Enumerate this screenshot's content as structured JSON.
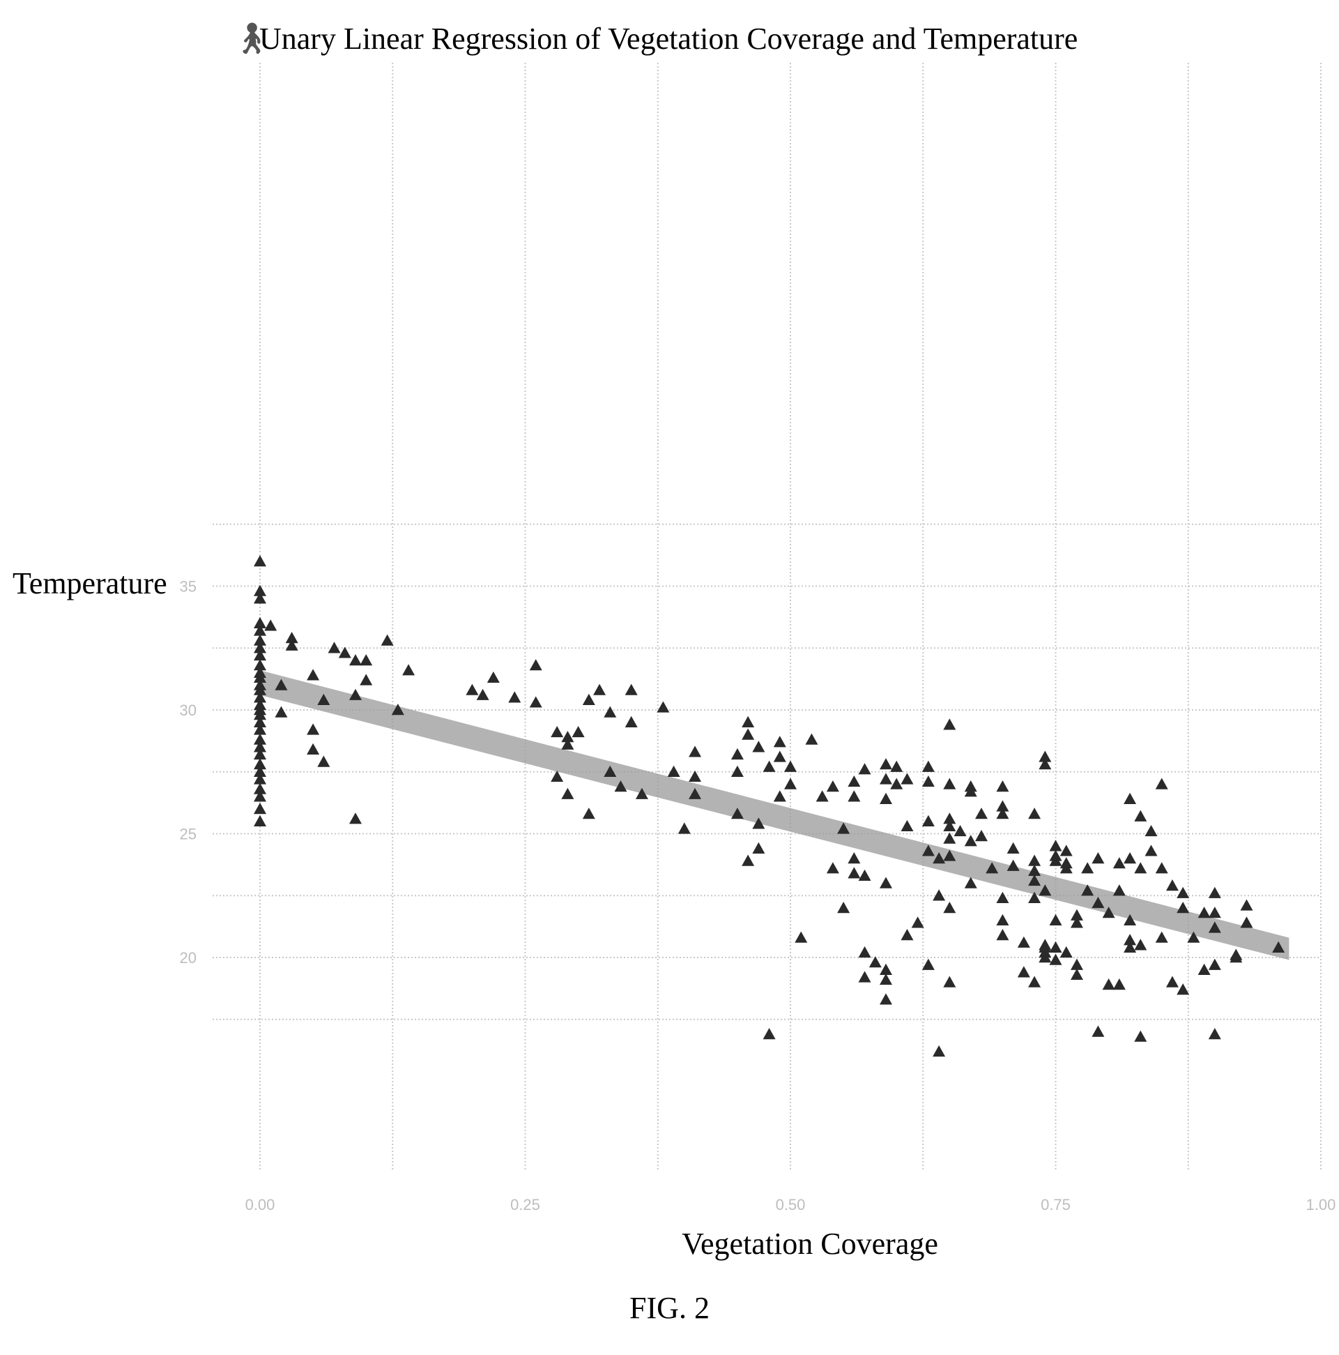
{
  "caption": "FIG. 2",
  "chart_data": {
    "type": "scatter",
    "title": "Unary Linear Regression of Vegetation Coverage and Temperature",
    "xlabel": "Vegetation Coverage",
    "ylabel": "Temperature",
    "xlim": [
      0.0,
      1.0
    ],
    "ylim": [
      15.0,
      38.0
    ],
    "xticks": [
      "0.00",
      "0.25",
      "0.50",
      "0.75",
      "1.00"
    ],
    "yticks": [
      {
        "value": 20,
        "label": "20"
      },
      {
        "value": 25,
        "label": "25"
      },
      {
        "value": 30,
        "label": "30"
      },
      {
        "value": 35,
        "label": "35"
      }
    ],
    "grid": true,
    "marker": "triangle",
    "colors": {
      "points": "#2a2a2a",
      "band": "#9a9a9a",
      "grid": "#c8c8c8"
    },
    "regression": {
      "x": [
        0.0,
        0.97
      ],
      "upper": [
        31.6,
        20.8
      ],
      "lower": [
        30.6,
        19.9
      ]
    },
    "points": [
      [
        0.0,
        36.0
      ],
      [
        0.0,
        34.8
      ],
      [
        0.0,
        34.5
      ],
      [
        0.0,
        33.5
      ],
      [
        0.0,
        33.2
      ],
      [
        0.0,
        32.8
      ],
      [
        0.0,
        32.5
      ],
      [
        0.0,
        32.2
      ],
      [
        0.0,
        31.8
      ],
      [
        0.0,
        31.5
      ],
      [
        0.0,
        31.3
      ],
      [
        0.0,
        31.0
      ],
      [
        0.0,
        30.8
      ],
      [
        0.0,
        30.5
      ],
      [
        0.0,
        30.2
      ],
      [
        0.0,
        30.0
      ],
      [
        0.0,
        29.8
      ],
      [
        0.0,
        29.5
      ],
      [
        0.0,
        29.2
      ],
      [
        0.0,
        28.8
      ],
      [
        0.0,
        28.5
      ],
      [
        0.0,
        28.2
      ],
      [
        0.0,
        27.8
      ],
      [
        0.0,
        27.5
      ],
      [
        0.0,
        27.2
      ],
      [
        0.0,
        26.8
      ],
      [
        0.0,
        26.5
      ],
      [
        0.0,
        26.0
      ],
      [
        0.0,
        25.5
      ],
      [
        0.01,
        33.4
      ],
      [
        0.02,
        29.9
      ],
      [
        0.02,
        31.0
      ],
      [
        0.03,
        32.9
      ],
      [
        0.03,
        32.6
      ],
      [
        0.05,
        31.4
      ],
      [
        0.05,
        29.2
      ],
      [
        0.05,
        28.4
      ],
      [
        0.06,
        30.4
      ],
      [
        0.06,
        27.9
      ],
      [
        0.07,
        32.5
      ],
      [
        0.08,
        32.3
      ],
      [
        0.09,
        32.0
      ],
      [
        0.09,
        30.6
      ],
      [
        0.09,
        25.6
      ],
      [
        0.1,
        31.2
      ],
      [
        0.1,
        32.0
      ],
      [
        0.12,
        32.8
      ],
      [
        0.13,
        30.0
      ],
      [
        0.14,
        31.6
      ],
      [
        0.2,
        30.8
      ],
      [
        0.21,
        30.6
      ],
      [
        0.22,
        31.3
      ],
      [
        0.24,
        30.5
      ],
      [
        0.26,
        31.8
      ],
      [
        0.26,
        30.3
      ],
      [
        0.28,
        29.1
      ],
      [
        0.28,
        27.3
      ],
      [
        0.29,
        28.9
      ],
      [
        0.29,
        28.6
      ],
      [
        0.29,
        26.6
      ],
      [
        0.3,
        29.1
      ],
      [
        0.31,
        30.4
      ],
      [
        0.31,
        25.8
      ],
      [
        0.32,
        30.8
      ],
      [
        0.33,
        29.9
      ],
      [
        0.33,
        27.5
      ],
      [
        0.34,
        26.9
      ],
      [
        0.35,
        29.5
      ],
      [
        0.35,
        30.8
      ],
      [
        0.36,
        26.6
      ],
      [
        0.38,
        30.1
      ],
      [
        0.39,
        27.5
      ],
      [
        0.41,
        28.3
      ],
      [
        0.41,
        27.3
      ],
      [
        0.41,
        26.6
      ],
      [
        0.4,
        25.2
      ],
      [
        0.45,
        28.2
      ],
      [
        0.45,
        27.5
      ],
      [
        0.45,
        25.8
      ],
      [
        0.46,
        29.5
      ],
      [
        0.46,
        29.0
      ],
      [
        0.46,
        23.9
      ],
      [
        0.47,
        28.5
      ],
      [
        0.47,
        25.4
      ],
      [
        0.47,
        24.4
      ],
      [
        0.48,
        27.7
      ],
      [
        0.48,
        16.9
      ],
      [
        0.49,
        28.7
      ],
      [
        0.49,
        28.1
      ],
      [
        0.49,
        26.5
      ],
      [
        0.5,
        27.7
      ],
      [
        0.5,
        27.0
      ],
      [
        0.51,
        20.8
      ],
      [
        0.52,
        28.8
      ],
      [
        0.53,
        26.5
      ],
      [
        0.54,
        26.9
      ],
      [
        0.54,
        23.6
      ],
      [
        0.55,
        25.2
      ],
      [
        0.55,
        22.0
      ],
      [
        0.56,
        27.1
      ],
      [
        0.56,
        26.5
      ],
      [
        0.56,
        23.4
      ],
      [
        0.56,
        24.0
      ],
      [
        0.57,
        27.6
      ],
      [
        0.57,
        23.3
      ],
      [
        0.57,
        20.2
      ],
      [
        0.57,
        19.2
      ],
      [
        0.58,
        19.8
      ],
      [
        0.59,
        27.8
      ],
      [
        0.59,
        27.2
      ],
      [
        0.59,
        26.4
      ],
      [
        0.59,
        23.0
      ],
      [
        0.59,
        19.5
      ],
      [
        0.59,
        19.1
      ],
      [
        0.59,
        18.3
      ],
      [
        0.6,
        27.7
      ],
      [
        0.6,
        27.0
      ],
      [
        0.61,
        27.2
      ],
      [
        0.61,
        25.3
      ],
      [
        0.61,
        20.9
      ],
      [
        0.62,
        21.4
      ],
      [
        0.63,
        27.7
      ],
      [
        0.63,
        27.1
      ],
      [
        0.63,
        25.5
      ],
      [
        0.63,
        24.3
      ],
      [
        0.63,
        19.7
      ],
      [
        0.64,
        24.0
      ],
      [
        0.64,
        22.5
      ],
      [
        0.64,
        16.2
      ],
      [
        0.65,
        29.4
      ],
      [
        0.65,
        27.0
      ],
      [
        0.65,
        25.6
      ],
      [
        0.65,
        25.3
      ],
      [
        0.65,
        24.8
      ],
      [
        0.65,
        24.1
      ],
      [
        0.65,
        22.0
      ],
      [
        0.65,
        19.0
      ],
      [
        0.66,
        25.1
      ],
      [
        0.67,
        26.9
      ],
      [
        0.67,
        26.7
      ],
      [
        0.67,
        24.7
      ],
      [
        0.67,
        23.0
      ],
      [
        0.68,
        25.8
      ],
      [
        0.68,
        24.9
      ],
      [
        0.69,
        23.6
      ],
      [
        0.7,
        26.9
      ],
      [
        0.7,
        26.1
      ],
      [
        0.7,
        25.8
      ],
      [
        0.7,
        22.4
      ],
      [
        0.7,
        21.5
      ],
      [
        0.7,
        20.9
      ],
      [
        0.71,
        24.4
      ],
      [
        0.71,
        23.7
      ],
      [
        0.72,
        20.6
      ],
      [
        0.72,
        19.4
      ],
      [
        0.73,
        23.9
      ],
      [
        0.73,
        23.5
      ],
      [
        0.73,
        23.1
      ],
      [
        0.73,
        22.4
      ],
      [
        0.73,
        19.0
      ],
      [
        0.73,
        25.8
      ],
      [
        0.74,
        28.1
      ],
      [
        0.74,
        27.8
      ],
      [
        0.74,
        22.7
      ],
      [
        0.74,
        20.2
      ],
      [
        0.74,
        20.0
      ],
      [
        0.74,
        20.4
      ],
      [
        0.74,
        20.5
      ],
      [
        0.75,
        24.5
      ],
      [
        0.75,
        24.1
      ],
      [
        0.75,
        23.9
      ],
      [
        0.75,
        21.5
      ],
      [
        0.75,
        20.4
      ],
      [
        0.75,
        19.9
      ],
      [
        0.76,
        23.6
      ],
      [
        0.76,
        23.8
      ],
      [
        0.76,
        24.3
      ],
      [
        0.76,
        20.2
      ],
      [
        0.77,
        21.7
      ],
      [
        0.77,
        21.4
      ],
      [
        0.77,
        19.7
      ],
      [
        0.77,
        19.3
      ],
      [
        0.78,
        23.6
      ],
      [
        0.78,
        22.7
      ],
      [
        0.79,
        24.0
      ],
      [
        0.79,
        22.2
      ],
      [
        0.79,
        17.0
      ],
      [
        0.8,
        21.8
      ],
      [
        0.8,
        18.9
      ],
      [
        0.81,
        23.8
      ],
      [
        0.81,
        22.7
      ],
      [
        0.81,
        18.9
      ],
      [
        0.82,
        26.4
      ],
      [
        0.82,
        24.0
      ],
      [
        0.82,
        21.5
      ],
      [
        0.82,
        20.7
      ],
      [
        0.82,
        20.4
      ],
      [
        0.83,
        25.7
      ],
      [
        0.83,
        23.6
      ],
      [
        0.83,
        20.5
      ],
      [
        0.83,
        16.8
      ],
      [
        0.84,
        25.1
      ],
      [
        0.84,
        24.3
      ],
      [
        0.85,
        27.0
      ],
      [
        0.85,
        23.6
      ],
      [
        0.85,
        20.8
      ],
      [
        0.86,
        22.9
      ],
      [
        0.86,
        19.0
      ],
      [
        0.87,
        22.6
      ],
      [
        0.87,
        22.0
      ],
      [
        0.87,
        18.7
      ],
      [
        0.88,
        20.8
      ],
      [
        0.89,
        21.8
      ],
      [
        0.89,
        19.5
      ],
      [
        0.9,
        22.6
      ],
      [
        0.9,
        21.8
      ],
      [
        0.9,
        19.7
      ],
      [
        0.9,
        21.2
      ],
      [
        0.9,
        16.9
      ],
      [
        0.92,
        20.1
      ],
      [
        0.92,
        20.0
      ],
      [
        0.93,
        22.1
      ],
      [
        0.93,
        21.4
      ],
      [
        0.96,
        20.4
      ]
    ]
  }
}
